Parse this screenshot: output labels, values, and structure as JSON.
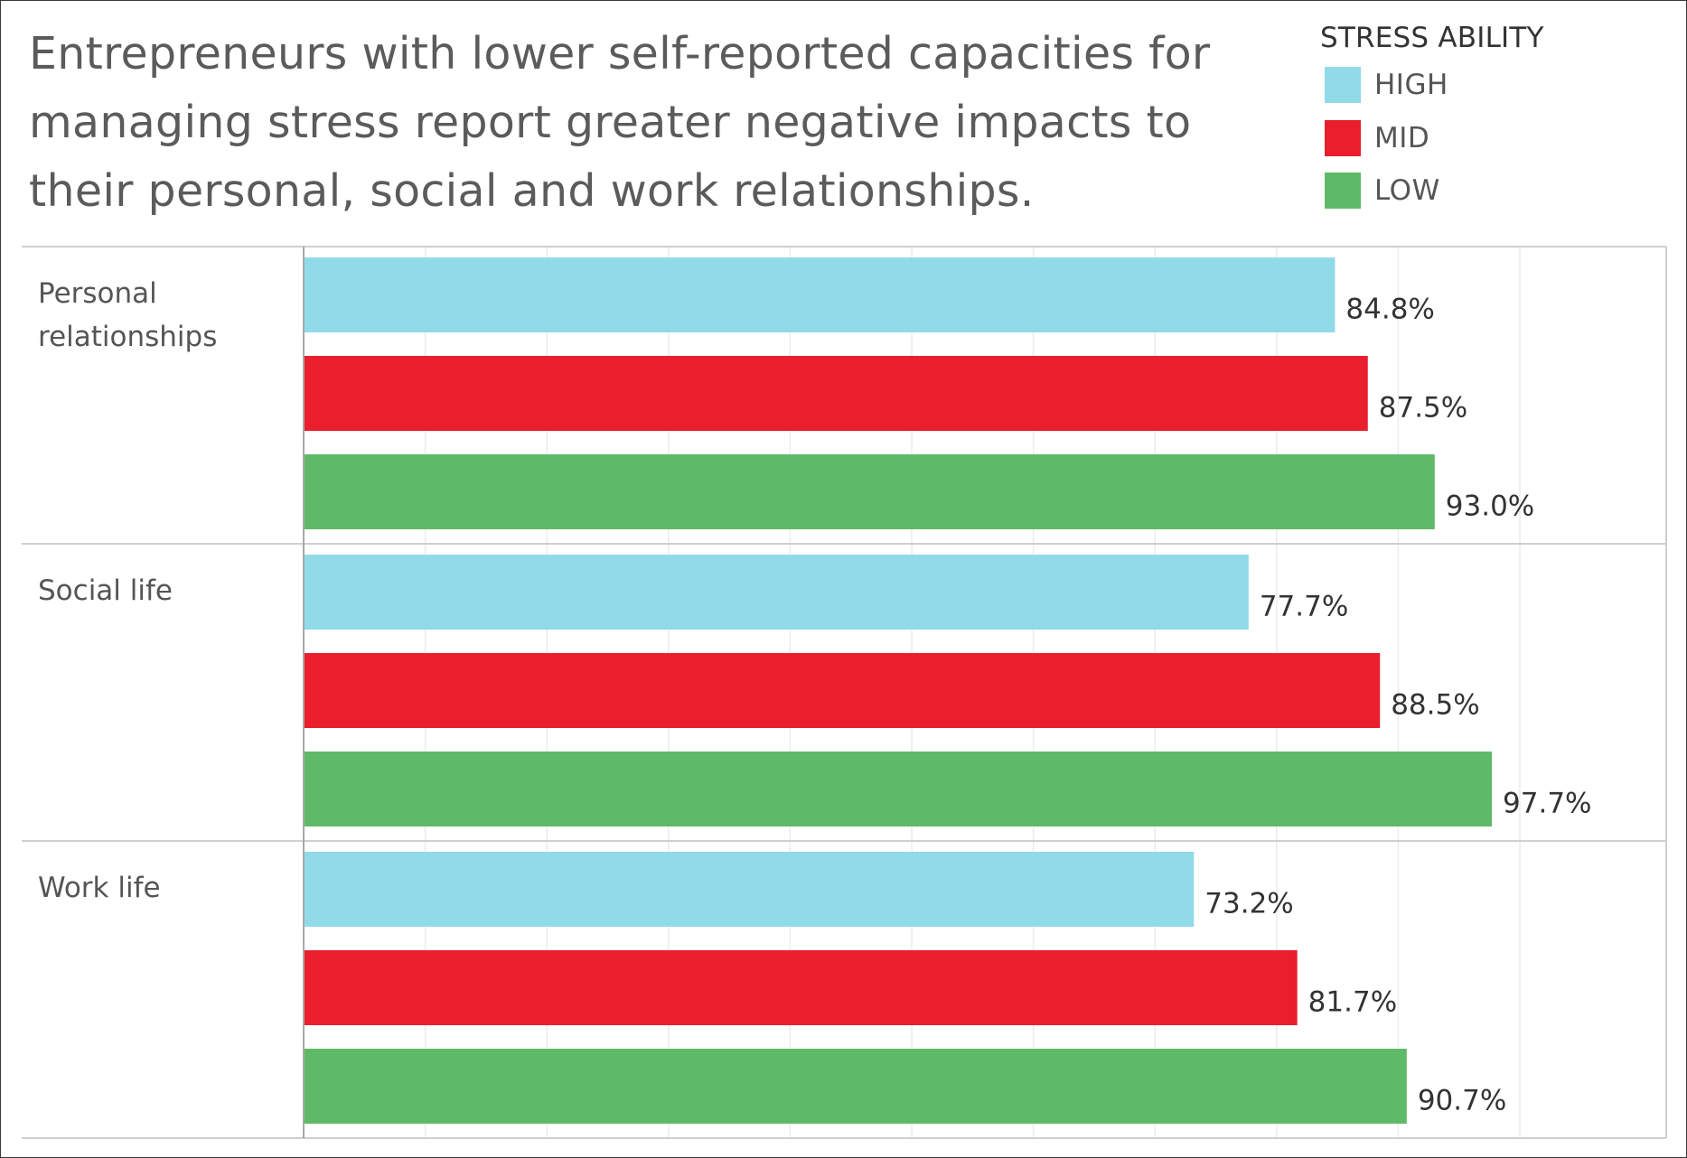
{
  "title": "Entrepreneurs with lower self-reported capacities for managing stress report greater negative impacts to their personal, social and work relationships.",
  "legend": {
    "title": "STRESS ABILITY",
    "items": [
      {
        "label": "HIGH",
        "color": "#91dbe9"
      },
      {
        "label": "MID",
        "color": "#e91f2e"
      },
      {
        "label": "LOW",
        "color": "#5fba68"
      }
    ]
  },
  "chart_data": {
    "type": "bar",
    "orientation": "horizontal",
    "title": "Entrepreneurs with lower self-reported capacities for managing stress report greater negative impacts to their personal, social and work relationships.",
    "categories": [
      "Personal relationships",
      "Social life",
      "Work life"
    ],
    "category_lines": [
      [
        "Personal",
        "relationships"
      ],
      [
        "Social life"
      ],
      [
        "Work life"
      ]
    ],
    "series": [
      {
        "name": "HIGH",
        "color": "#91dbe9",
        "values": [
          84.8,
          77.7,
          73.2
        ],
        "labels": [
          "84.8%",
          "77.7%",
          "73.2%"
        ]
      },
      {
        "name": "MID",
        "color": "#e91f2e",
        "values": [
          87.5,
          88.5,
          81.7
        ],
        "labels": [
          "87.5%",
          "88.5%",
          "81.7%"
        ]
      },
      {
        "name": "LOW",
        "color": "#5fba68",
        "values": [
          93.0,
          97.7,
          90.7
        ],
        "labels": [
          "93.0%",
          "97.7%",
          "90.7%"
        ]
      }
    ],
    "xlim": [
      0,
      110
    ],
    "value_format": "percent",
    "grid": true,
    "legend_position": "top-right"
  }
}
